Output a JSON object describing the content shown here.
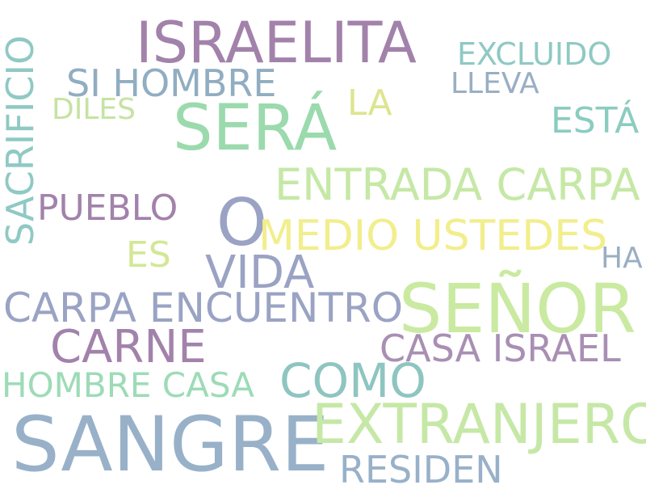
{
  "words": [
    {
      "text": "ISRAELITA",
      "color": "#a282ab"
    },
    {
      "text": "EXCLUIDO",
      "color": "#8fc9c4"
    },
    {
      "text": "SI HOMBRE",
      "color": "#91adc1"
    },
    {
      "text": "LLEVA",
      "color": "#9aaec4"
    },
    {
      "text": "DILES",
      "color": "#c6e3a2"
    },
    {
      "text": "LA",
      "color": "#dde58f"
    },
    {
      "text": "SERÁ",
      "color": "#9bdaad"
    },
    {
      "text": "ESTÁ",
      "color": "#8cccc0"
    },
    {
      "text": "SACRIFICIO",
      "color": "#8fc9c4"
    },
    {
      "text": "ENTRADA CARPA",
      "color": "#c6e8a6"
    },
    {
      "text": "PUEBLO",
      "color": "#a282ab"
    },
    {
      "text": "O",
      "color": "#9aa3c3"
    },
    {
      "text": "MEDIO USTEDES",
      "color": "#f2ee8c"
    },
    {
      "text": "ES",
      "color": "#d3e796"
    },
    {
      "text": "VIDA",
      "color": "#9aa3c3"
    },
    {
      "text": "HA",
      "color": "#9aaec4"
    },
    {
      "text": "CARPA ENCUENTRO",
      "color": "#9aa3c3"
    },
    {
      "text": "SEÑOR",
      "color": "#c9eaa0"
    },
    {
      "text": "CARNE",
      "color": "#a282ab"
    },
    {
      "text": "CASA ISRAEL",
      "color": "#a98fb3"
    },
    {
      "text": "HOMBRE CASA",
      "color": "#9ddbb7"
    },
    {
      "text": "COMO",
      "color": "#8ec5c0"
    },
    {
      "text": "SANGRE",
      "color": "#98b1c8"
    },
    {
      "text": "EXTRANJERO",
      "color": "#c6e8a6"
    },
    {
      "text": "RESIDEN",
      "color": "#98b1c8"
    }
  ]
}
